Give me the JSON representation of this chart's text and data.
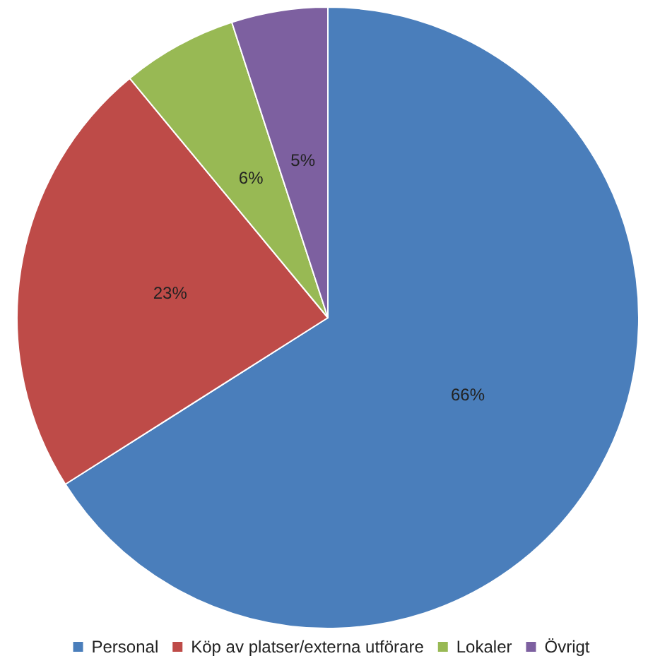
{
  "chart_data": {
    "type": "pie",
    "categories": [
      "Personal",
      "Köp av platser/externa utförare",
      "Lokaler",
      "Övrigt"
    ],
    "values": [
      66,
      23,
      6,
      5
    ],
    "value_labels": [
      "66%",
      "23%",
      "6%",
      "5%"
    ],
    "colors": [
      "#4a7ebb",
      "#be4b48",
      "#98b954",
      "#7d60a0"
    ],
    "legend": "bottom"
  }
}
